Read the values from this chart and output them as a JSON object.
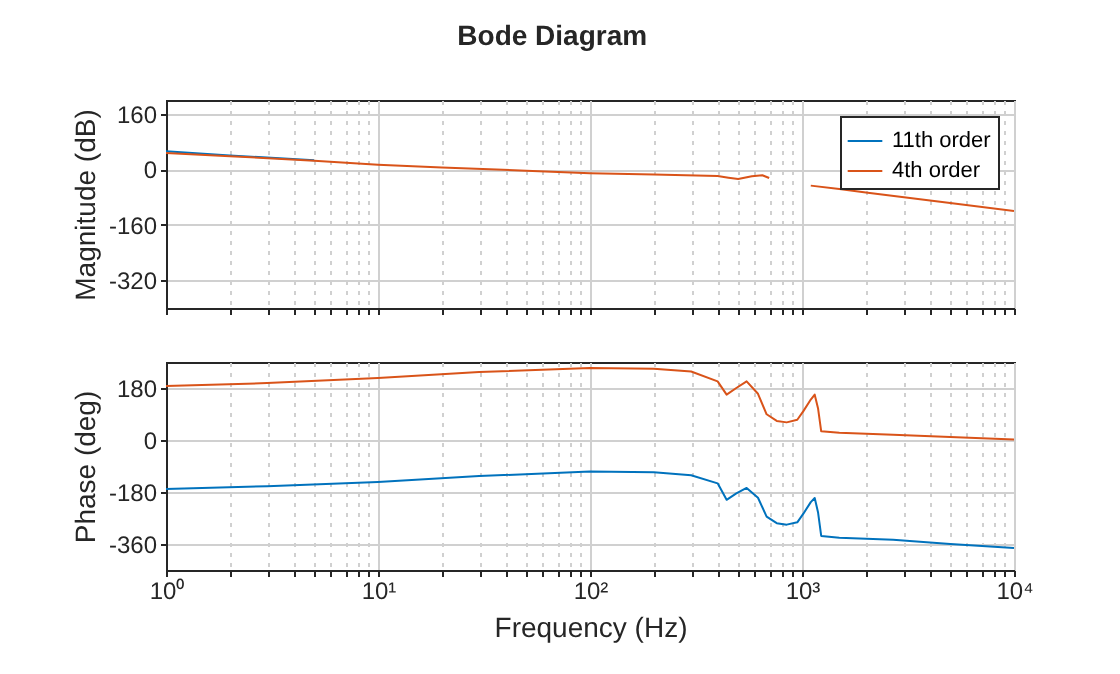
{
  "chart_data": [
    {
      "type": "line",
      "title": "Bode Diagram",
      "ylabel": "Magnitude (dB)",
      "log": "x",
      "grid": true,
      "legend": "top right",
      "tick_labels": "y",
      "xlim": [
        1,
        10000
      ],
      "xticks": [
        {
          "value": 1,
          "label": null
        },
        {
          "value": 2,
          "label": null
        },
        {
          "value": 3,
          "label": null
        },
        {
          "value": 4,
          "label": null
        },
        {
          "value": 5,
          "label": null
        },
        {
          "value": 6,
          "label": null
        },
        {
          "value": 7,
          "label": null
        },
        {
          "value": 8,
          "label": null
        },
        {
          "value": 9,
          "label": null
        },
        {
          "value": 10,
          "label": null
        },
        {
          "value": 20,
          "label": null
        },
        {
          "value": 30,
          "label": null
        },
        {
          "value": 40,
          "label": null
        },
        {
          "value": 50,
          "label": null
        },
        {
          "value": 60,
          "label": null
        },
        {
          "value": 70,
          "label": null
        },
        {
          "value": 80,
          "label": null
        },
        {
          "value": 90,
          "label": null
        },
        {
          "value": 100,
          "label": null
        },
        {
          "value": 200,
          "label": null
        },
        {
          "value": 300,
          "label": null
        },
        {
          "value": 400,
          "label": null
        },
        {
          "value": 500,
          "label": null
        },
        {
          "value": 600,
          "label": null
        },
        {
          "value": 700,
          "label": null
        },
        {
          "value": 800,
          "label": null
        },
        {
          "value": 900,
          "label": null
        },
        {
          "value": 1000,
          "label": null
        },
        {
          "value": 2000,
          "label": null
        },
        {
          "value": 3000,
          "label": null
        },
        {
          "value": 4000,
          "label": null
        },
        {
          "value": 5000,
          "label": null
        },
        {
          "value": 6000,
          "label": null
        },
        {
          "value": 7000,
          "label": null
        },
        {
          "value": 8000,
          "label": null
        },
        {
          "value": 9000,
          "label": null
        },
        {
          "value": 10000,
          "label": null
        }
      ],
      "ylim": [
        -400,
        200
      ],
      "yticks": [
        -320,
        -160,
        0,
        160
      ],
      "x": [
        1,
        2,
        5,
        10,
        20,
        50,
        100,
        200,
        400,
        450,
        500,
        580,
        650,
        700,
        850,
        1100,
        1500,
        2000,
        5000,
        10000
      ],
      "series": [
        {
          "name": "11th order",
          "color": "#0072bd",
          "values": [
            52,
            40,
            26,
            null,
            null,
            null,
            null,
            null,
            null,
            null,
            null,
            null,
            null,
            null,
            null,
            null,
            null,
            null,
            null,
            null
          ]
        },
        {
          "name": "4th order",
          "color": "#d95319",
          "values": [
            47,
            38,
            25,
            13,
            5,
            -4,
            -11,
            -15,
            -19,
            -24,
            -28,
            -20,
            -17,
            -25,
            null,
            -47,
            -57,
            -67,
            -97,
            -120
          ]
        }
      ]
    },
    {
      "type": "line",
      "xlabel": "Frequency (Hz)",
      "ylabel": "Phase (deg)",
      "log": "x",
      "grid": true,
      "xlim": [
        1,
        10000
      ],
      "xticks": [
        {
          "value": 1,
          "label": "10⁰"
        },
        {
          "value": 2,
          "label": null
        },
        {
          "value": 3,
          "label": null
        },
        {
          "value": 4,
          "label": null
        },
        {
          "value": 5,
          "label": null
        },
        {
          "value": 6,
          "label": null
        },
        {
          "value": 7,
          "label": null
        },
        {
          "value": 8,
          "label": null
        },
        {
          "value": 9,
          "label": null
        },
        {
          "value": 10,
          "label": "10¹"
        },
        {
          "value": 20,
          "label": null
        },
        {
          "value": 30,
          "label": null
        },
        {
          "value": 40,
          "label": null
        },
        {
          "value": 50,
          "label": null
        },
        {
          "value": 60,
          "label": null
        },
        {
          "value": 70,
          "label": null
        },
        {
          "value": 80,
          "label": null
        },
        {
          "value": 90,
          "label": null
        },
        {
          "value": 100,
          "label": "10²"
        },
        {
          "value": 200,
          "label": null
        },
        {
          "value": 300,
          "label": null
        },
        {
          "value": 400,
          "label": null
        },
        {
          "value": 500,
          "label": null
        },
        {
          "value": 600,
          "label": null
        },
        {
          "value": 700,
          "label": null
        },
        {
          "value": 800,
          "label": null
        },
        {
          "value": 900,
          "label": null
        },
        {
          "value": 1000,
          "label": "10³"
        },
        {
          "value": 2000,
          "label": null
        },
        {
          "value": 3000,
          "label": null
        },
        {
          "value": 4000,
          "label": null
        },
        {
          "value": 5000,
          "label": null
        },
        {
          "value": 6000,
          "label": null
        },
        {
          "value": 7000,
          "label": null
        },
        {
          "value": 8000,
          "label": null
        },
        {
          "value": 9000,
          "label": null
        },
        {
          "value": 10000,
          "label": "10⁴"
        }
      ],
      "ylim": [
        -450,
        270
      ],
      "yticks": [
        -360,
        -180,
        0,
        180
      ],
      "x": [
        1,
        3,
        10,
        30,
        100,
        200,
        300,
        400,
        441,
        490,
        548,
        620,
        681,
        760,
        847,
        950,
        1015,
        1100,
        1148,
        1190,
        1232,
        1500,
        2690,
        5000,
        10000
      ],
      "series": [
        {
          "color": "#0072bd",
          "values": [
            -170,
            -160,
            -145,
            -125,
            -109,
            -112,
            -122,
            -150,
            -207,
            -185,
            -166,
            -200,
            -265,
            -288,
            -293,
            -285,
            -255,
            -215,
            -201,
            -250,
            -332,
            -338,
            -345,
            -360,
            -374
          ]
        },
        {
          "color": "#d95319",
          "values": [
            187,
            197,
            215,
            235,
            249,
            247,
            237,
            203,
            157,
            180,
            203,
            160,
            89,
            66,
            61,
            70,
            100,
            140,
            157,
            110,
            30,
            25,
            18,
            10,
            2
          ]
        }
      ]
    }
  ]
}
